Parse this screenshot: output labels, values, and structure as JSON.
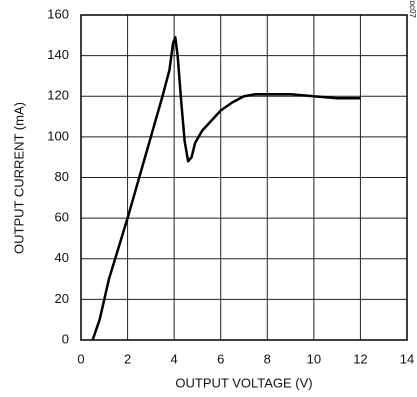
{
  "chart_data": {
    "type": "line",
    "xlabel": "OUTPUT VOLTAGE (V)",
    "ylabel": "OUTPUT CURRENT (mA)",
    "annotation": "MAX3157toc07",
    "x": [
      0.5,
      0.8,
      1.2,
      1.6,
      2,
      2.5,
      3,
      3.5,
      3.8,
      3.95,
      4.05,
      4.15,
      4.3,
      4.45,
      4.6,
      4.75,
      4.9,
      5.2,
      5.6,
      6,
      6.5,
      7,
      7.5,
      8,
      9,
      10,
      11,
      12
    ],
    "series": [
      {
        "color": "#000000",
        "values": [
          0,
          10,
          30,
          45,
          60,
          80,
          100,
          120,
          133,
          146,
          149,
          140,
          118,
          98,
          88,
          90,
          97,
          103,
          108,
          113,
          117,
          120,
          121,
          121,
          121,
          120,
          119,
          119
        ]
      }
    ],
    "xlim": [
      0,
      14
    ],
    "xticks": [
      0,
      2,
      4,
      6,
      8,
      10,
      12,
      14
    ],
    "ylim": [
      0,
      160
    ],
    "yticks": [
      0,
      20,
      40,
      60,
      80,
      100,
      120,
      140,
      160
    ],
    "grid": true
  }
}
